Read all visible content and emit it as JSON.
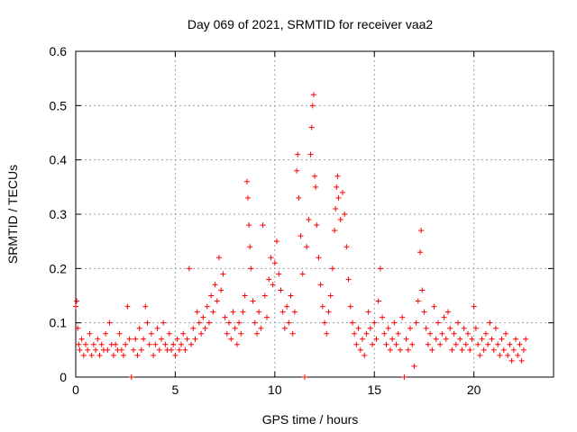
{
  "chart_data": {
    "type": "scatter",
    "title": "Day 069 of 2021, SRMTID for receiver vaa2",
    "xlabel": "GPS time / hours",
    "ylabel": "SRMTID / TECUs",
    "xlim": [
      0,
      24
    ],
    "ylim": [
      0,
      0.6
    ],
    "x_ticks": [
      0,
      5,
      10,
      15,
      20
    ],
    "x_tick_labels": [
      "0",
      "5",
      "10",
      "15",
      "20"
    ],
    "y_ticks": [
      0,
      0.1,
      0.2,
      0.3,
      0.4,
      0.5,
      0.6
    ],
    "y_tick_labels": [
      "0",
      "0.1",
      "0.2",
      "0.3",
      "0.4",
      "0.5",
      "0.6"
    ],
    "grid": true,
    "marker": "+",
    "color": "#ff0000",
    "series": [
      {
        "name": "SRMTID",
        "points": [
          [
            0.0,
            0.13
          ],
          [
            0.05,
            0.14
          ],
          [
            0.1,
            0.09
          ],
          [
            0.15,
            0.06
          ],
          [
            0.2,
            0.05
          ],
          [
            0.3,
            0.07
          ],
          [
            0.4,
            0.04
          ],
          [
            0.5,
            0.06
          ],
          [
            0.6,
            0.05
          ],
          [
            0.7,
            0.08
          ],
          [
            0.8,
            0.04
          ],
          [
            0.9,
            0.06
          ],
          [
            1.0,
            0.05
          ],
          [
            1.1,
            0.07
          ],
          [
            1.2,
            0.04
          ],
          [
            1.3,
            0.06
          ],
          [
            1.4,
            0.05
          ],
          [
            1.5,
            0.08
          ],
          [
            1.6,
            0.05
          ],
          [
            1.7,
            0.1
          ],
          [
            1.8,
            0.06
          ],
          [
            1.9,
            0.04
          ],
          [
            2.0,
            0.06
          ],
          [
            2.1,
            0.05
          ],
          [
            2.2,
            0.08
          ],
          [
            2.3,
            0.05
          ],
          [
            2.4,
            0.04
          ],
          [
            2.5,
            0.06
          ],
          [
            2.6,
            0.13
          ],
          [
            2.7,
            0.07
          ],
          [
            2.8,
            0.0
          ],
          [
            2.9,
            0.05
          ],
          [
            3.0,
            0.07
          ],
          [
            3.1,
            0.04
          ],
          [
            3.2,
            0.09
          ],
          [
            3.3,
            0.05
          ],
          [
            3.4,
            0.07
          ],
          [
            3.5,
            0.13
          ],
          [
            3.6,
            0.1
          ],
          [
            3.7,
            0.06
          ],
          [
            3.8,
            0.08
          ],
          [
            3.9,
            0.04
          ],
          [
            4.0,
            0.06
          ],
          [
            4.1,
            0.09
          ],
          [
            4.2,
            0.05
          ],
          [
            4.3,
            0.07
          ],
          [
            4.4,
            0.1
          ],
          [
            4.5,
            0.06
          ],
          [
            4.6,
            0.05
          ],
          [
            4.7,
            0.08
          ],
          [
            4.8,
            0.05
          ],
          [
            4.9,
            0.06
          ],
          [
            5.0,
            0.04
          ],
          [
            5.1,
            0.07
          ],
          [
            5.2,
            0.05
          ],
          [
            5.3,
            0.06
          ],
          [
            5.4,
            0.08
          ],
          [
            5.5,
            0.05
          ],
          [
            5.6,
            0.07
          ],
          [
            5.7,
            0.2
          ],
          [
            5.8,
            0.06
          ],
          [
            5.9,
            0.09
          ],
          [
            6.0,
            0.07
          ],
          [
            6.1,
            0.12
          ],
          [
            6.2,
            0.1
          ],
          [
            6.3,
            0.08
          ],
          [
            6.4,
            0.11
          ],
          [
            6.5,
            0.09
          ],
          [
            6.6,
            0.13
          ],
          [
            6.7,
            0.1
          ],
          [
            6.8,
            0.15
          ],
          [
            6.9,
            0.12
          ],
          [
            7.0,
            0.17
          ],
          [
            7.1,
            0.14
          ],
          [
            7.2,
            0.22
          ],
          [
            7.3,
            0.16
          ],
          [
            7.4,
            0.19
          ],
          [
            7.5,
            0.11
          ],
          [
            7.6,
            0.08
          ],
          [
            7.7,
            0.1
          ],
          [
            7.8,
            0.07
          ],
          [
            7.9,
            0.12
          ],
          [
            8.0,
            0.09
          ],
          [
            8.1,
            0.06
          ],
          [
            8.2,
            0.1
          ],
          [
            8.3,
            0.08
          ],
          [
            8.4,
            0.12
          ],
          [
            8.5,
            0.15
          ],
          [
            8.6,
            0.36
          ],
          [
            8.65,
            0.33
          ],
          [
            8.7,
            0.28
          ],
          [
            8.75,
            0.24
          ],
          [
            8.8,
            0.2
          ],
          [
            8.9,
            0.14
          ],
          [
            9.0,
            0.1
          ],
          [
            9.1,
            0.08
          ],
          [
            9.2,
            0.12
          ],
          [
            9.3,
            0.09
          ],
          [
            9.4,
            0.28
          ],
          [
            9.5,
            0.15
          ],
          [
            9.6,
            0.11
          ],
          [
            9.7,
            0.18
          ],
          [
            9.8,
            0.22
          ],
          [
            9.9,
            0.17
          ],
          [
            10.0,
            0.21
          ],
          [
            10.1,
            0.25
          ],
          [
            10.2,
            0.19
          ],
          [
            10.3,
            0.16
          ],
          [
            10.4,
            0.12
          ],
          [
            10.5,
            0.09
          ],
          [
            10.6,
            0.13
          ],
          [
            10.7,
            0.1
          ],
          [
            10.8,
            0.15
          ],
          [
            10.9,
            0.08
          ],
          [
            11.0,
            0.12
          ],
          [
            11.1,
            0.38
          ],
          [
            11.15,
            0.41
          ],
          [
            11.2,
            0.33
          ],
          [
            11.3,
            0.26
          ],
          [
            11.4,
            0.19
          ],
          [
            11.5,
            0.0
          ],
          [
            11.6,
            0.24
          ],
          [
            11.7,
            0.29
          ],
          [
            11.8,
            0.41
          ],
          [
            11.85,
            0.46
          ],
          [
            11.9,
            0.5
          ],
          [
            11.95,
            0.52
          ],
          [
            12.0,
            0.37
          ],
          [
            12.05,
            0.35
          ],
          [
            12.1,
            0.28
          ],
          [
            12.2,
            0.22
          ],
          [
            12.3,
            0.17
          ],
          [
            12.4,
            0.13
          ],
          [
            12.5,
            0.1
          ],
          [
            12.6,
            0.08
          ],
          [
            12.7,
            0.12
          ],
          [
            12.8,
            0.15
          ],
          [
            12.9,
            0.2
          ],
          [
            13.0,
            0.27
          ],
          [
            13.05,
            0.31
          ],
          [
            13.1,
            0.35
          ],
          [
            13.15,
            0.37
          ],
          [
            13.2,
            0.33
          ],
          [
            13.3,
            0.29
          ],
          [
            13.4,
            0.34
          ],
          [
            13.5,
            0.3
          ],
          [
            13.6,
            0.24
          ],
          [
            13.7,
            0.18
          ],
          [
            13.8,
            0.13
          ],
          [
            13.9,
            0.1
          ],
          [
            14.0,
            0.08
          ],
          [
            14.1,
            0.06
          ],
          [
            14.2,
            0.09
          ],
          [
            14.3,
            0.05
          ],
          [
            14.4,
            0.07
          ],
          [
            14.5,
            0.04
          ],
          [
            14.6,
            0.08
          ],
          [
            14.7,
            0.12
          ],
          [
            14.8,
            0.09
          ],
          [
            14.9,
            0.06
          ],
          [
            15.0,
            0.1
          ],
          [
            15.1,
            0.07
          ],
          [
            15.2,
            0.14
          ],
          [
            15.3,
            0.2
          ],
          [
            15.4,
            0.11
          ],
          [
            15.5,
            0.08
          ],
          [
            15.6,
            0.06
          ],
          [
            15.7,
            0.09
          ],
          [
            15.8,
            0.05
          ],
          [
            15.9,
            0.07
          ],
          [
            16.0,
            0.1
          ],
          [
            16.1,
            0.06
          ],
          [
            16.2,
            0.08
          ],
          [
            16.3,
            0.05
          ],
          [
            16.4,
            0.11
          ],
          [
            16.5,
            0.0
          ],
          [
            16.6,
            0.07
          ],
          [
            16.7,
            0.05
          ],
          [
            16.8,
            0.09
          ],
          [
            16.9,
            0.06
          ],
          [
            17.0,
            0.02
          ],
          [
            17.1,
            0.1
          ],
          [
            17.2,
            0.14
          ],
          [
            17.3,
            0.23
          ],
          [
            17.35,
            0.27
          ],
          [
            17.4,
            0.16
          ],
          [
            17.5,
            0.12
          ],
          [
            17.6,
            0.09
          ],
          [
            17.7,
            0.06
          ],
          [
            17.8,
            0.08
          ],
          [
            17.9,
            0.05
          ],
          [
            18.0,
            0.13
          ],
          [
            18.1,
            0.07
          ],
          [
            18.2,
            0.1
          ],
          [
            18.3,
            0.06
          ],
          [
            18.4,
            0.08
          ],
          [
            18.5,
            0.11
          ],
          [
            18.6,
            0.07
          ],
          [
            18.7,
            0.12
          ],
          [
            18.8,
            0.09
          ],
          [
            18.9,
            0.05
          ],
          [
            19.0,
            0.08
          ],
          [
            19.1,
            0.06
          ],
          [
            19.2,
            0.1
          ],
          [
            19.3,
            0.07
          ],
          [
            19.4,
            0.05
          ],
          [
            19.5,
            0.09
          ],
          [
            19.6,
            0.06
          ],
          [
            19.7,
            0.08
          ],
          [
            19.8,
            0.05
          ],
          [
            19.9,
            0.07
          ],
          [
            20.0,
            0.13
          ],
          [
            20.1,
            0.09
          ],
          [
            20.2,
            0.06
          ],
          [
            20.3,
            0.04
          ],
          [
            20.4,
            0.07
          ],
          [
            20.5,
            0.05
          ],
          [
            20.6,
            0.08
          ],
          [
            20.7,
            0.06
          ],
          [
            20.8,
            0.1
          ],
          [
            20.9,
            0.07
          ],
          [
            21.0,
            0.05
          ],
          [
            21.1,
            0.09
          ],
          [
            21.2,
            0.06
          ],
          [
            21.3,
            0.04
          ],
          [
            21.4,
            0.07
          ],
          [
            21.5,
            0.05
          ],
          [
            21.6,
            0.08
          ],
          [
            21.7,
            0.04
          ],
          [
            21.8,
            0.06
          ],
          [
            21.9,
            0.03
          ],
          [
            22.0,
            0.05
          ],
          [
            22.1,
            0.07
          ],
          [
            22.2,
            0.04
          ],
          [
            22.3,
            0.06
          ],
          [
            22.4,
            0.03
          ],
          [
            22.5,
            0.05
          ],
          [
            22.6,
            0.07
          ]
        ]
      }
    ]
  }
}
